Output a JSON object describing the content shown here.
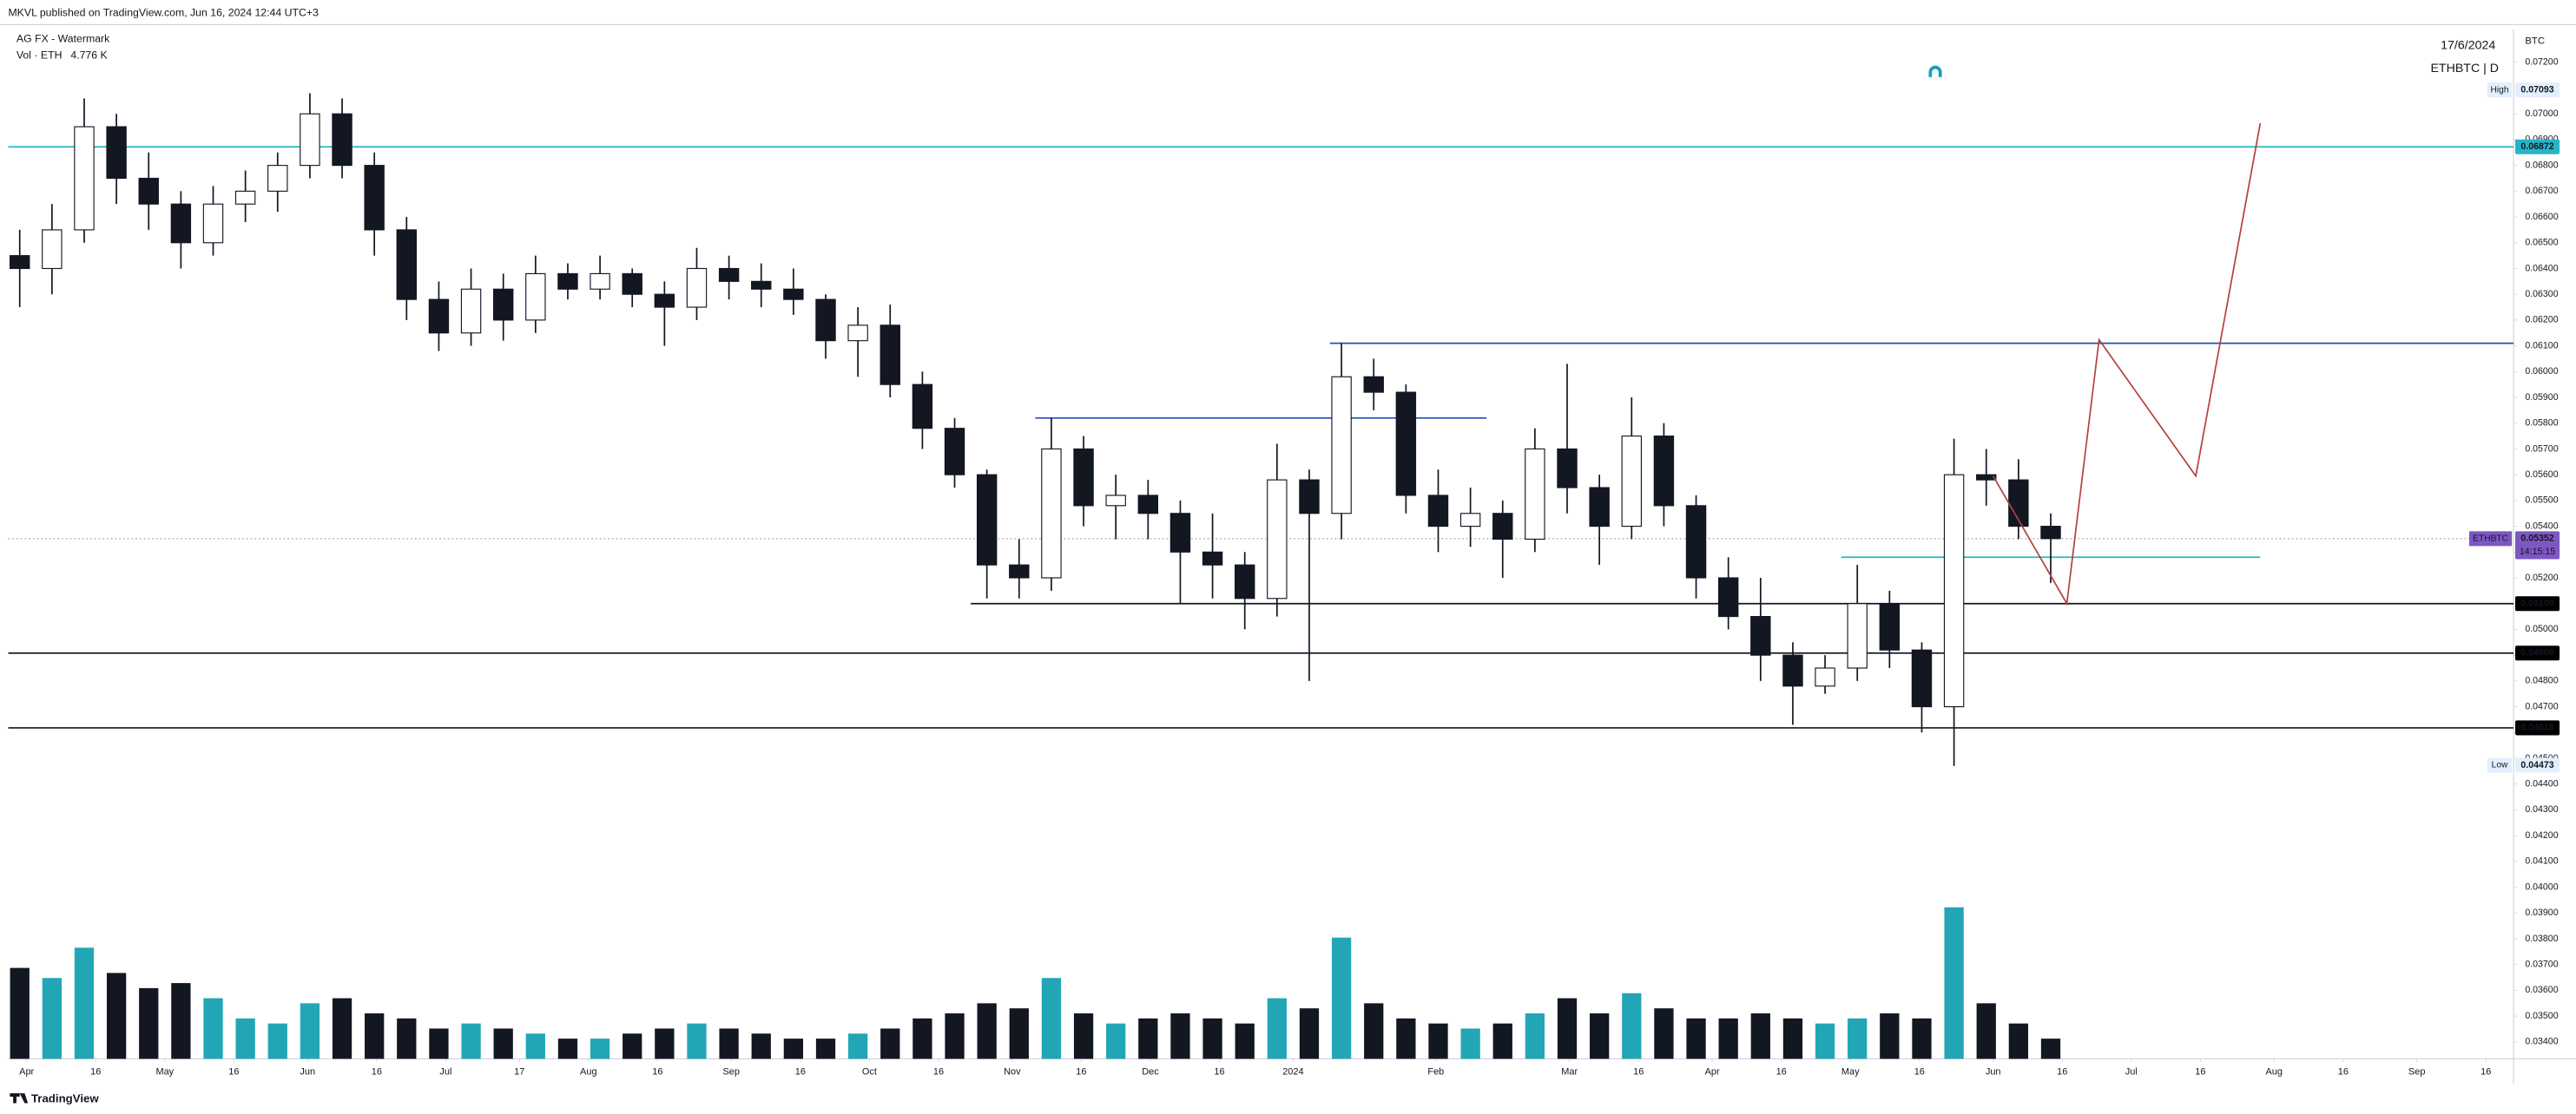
{
  "chart_data": {
    "type": "candlestick",
    "publisher_line": "MKVL published on TradingView.com, Jun 16, 2024 12:44 UTC+3",
    "indicator": "AG FX - Watermark",
    "volume_label": "Vol · ETH",
    "volume_value_label": "4.776 K",
    "date_label": "17/6/2024",
    "symbol_label": "ETHBTC | D",
    "axis_unit": "BTC",
    "brand": "TradingView",
    "up_color": "#ffffff",
    "down_color": "#131722",
    "volume_up_color": "#22a6b5",
    "volume_down_color": "#131722",
    "grid": false,
    "x": [
      "2023-03-27",
      "2023-04-03",
      "2023-04-10",
      "2023-04-17",
      "2023-04-24",
      "2023-05-01",
      "2023-05-08",
      "2023-05-15",
      "2023-05-22",
      "2023-05-29",
      "2023-06-05",
      "2023-06-12",
      "2023-06-19",
      "2023-06-26",
      "2023-07-03",
      "2023-07-10",
      "2023-07-17",
      "2023-07-24",
      "2023-07-31",
      "2023-08-07",
      "2023-08-14",
      "2023-08-21",
      "2023-08-28",
      "2023-09-04",
      "2023-09-11",
      "2023-09-18",
      "2023-09-25",
      "2023-10-02",
      "2023-10-09",
      "2023-10-16",
      "2023-10-23",
      "2023-10-30",
      "2023-11-06",
      "2023-11-13",
      "2023-11-20",
      "2023-11-27",
      "2023-12-04",
      "2023-12-11",
      "2023-12-18",
      "2023-12-25",
      "2024-01-01",
      "2024-01-08",
      "2024-01-15",
      "2024-01-22",
      "2024-01-29",
      "2024-02-05",
      "2024-02-12",
      "2024-02-19",
      "2024-02-26",
      "2024-03-04",
      "2024-03-11",
      "2024-03-18",
      "2024-03-25",
      "2024-04-01",
      "2024-04-08",
      "2024-04-15",
      "2024-04-22",
      "2024-04-29",
      "2024-05-06",
      "2024-05-13",
      "2024-05-20",
      "2024-05-27",
      "2024-06-03",
      "2024-06-10"
    ],
    "open": [
      0.0645,
      0.064,
      0.0655,
      0.0695,
      0.0675,
      0.0665,
      0.065,
      0.0665,
      0.067,
      0.068,
      0.07,
      0.068,
      0.0655,
      0.0628,
      0.0615,
      0.0632,
      0.062,
      0.0638,
      0.0632,
      0.0638,
      0.063,
      0.0625,
      0.064,
      0.0635,
      0.0632,
      0.0628,
      0.0612,
      0.0618,
      0.0595,
      0.0578,
      0.056,
      0.0525,
      0.052,
      0.057,
      0.0548,
      0.0552,
      0.0545,
      0.053,
      0.0525,
      0.0512,
      0.0558,
      0.0545,
      0.0598,
      0.0592,
      0.0552,
      0.054,
      0.0545,
      0.0535,
      0.057,
      0.0555,
      0.054,
      0.0575,
      0.0548,
      0.052,
      0.0505,
      0.049,
      0.0478,
      0.0485,
      0.051,
      0.0492,
      0.047,
      0.056,
      0.0558,
      0.054
    ],
    "high": [
      0.0655,
      0.0665,
      0.0706,
      0.07,
      0.0685,
      0.067,
      0.0672,
      0.0678,
      0.0685,
      0.0708,
      0.0706,
      0.0685,
      0.066,
      0.0635,
      0.064,
      0.0638,
      0.0645,
      0.0642,
      0.0645,
      0.064,
      0.0635,
      0.0648,
      0.0645,
      0.0642,
      0.064,
      0.063,
      0.0625,
      0.0626,
      0.06,
      0.0582,
      0.0562,
      0.0535,
      0.0582,
      0.0575,
      0.056,
      0.0558,
      0.055,
      0.0545,
      0.053,
      0.0572,
      0.0562,
      0.0611,
      0.0605,
      0.0595,
      0.0562,
      0.0555,
      0.055,
      0.0578,
      0.0603,
      0.056,
      0.059,
      0.058,
      0.0552,
      0.0528,
      0.052,
      0.0495,
      0.049,
      0.0525,
      0.0515,
      0.0495,
      0.0574,
      0.057,
      0.0566,
      0.0545
    ],
    "low": [
      0.0625,
      0.063,
      0.065,
      0.0665,
      0.0655,
      0.064,
      0.0645,
      0.0658,
      0.0662,
      0.0675,
      0.0675,
      0.0645,
      0.062,
      0.0608,
      0.061,
      0.0612,
      0.0615,
      0.0628,
      0.0628,
      0.0625,
      0.061,
      0.062,
      0.0628,
      0.0625,
      0.0622,
      0.0605,
      0.0598,
      0.059,
      0.057,
      0.0555,
      0.0512,
      0.0512,
      0.0515,
      0.054,
      0.0535,
      0.0535,
      0.051,
      0.0512,
      0.05,
      0.0505,
      0.048,
      0.0535,
      0.0585,
      0.0545,
      0.053,
      0.0532,
      0.052,
      0.053,
      0.0545,
      0.0525,
      0.0535,
      0.054,
      0.0512,
      0.05,
      0.048,
      0.0463,
      0.0475,
      0.048,
      0.0485,
      0.046,
      0.0447,
      0.0548,
      0.0535,
      0.0518
    ],
    "close": [
      0.064,
      0.0655,
      0.0695,
      0.0675,
      0.0665,
      0.065,
      0.0665,
      0.067,
      0.068,
      0.07,
      0.068,
      0.0655,
      0.0628,
      0.0615,
      0.0632,
      0.062,
      0.0638,
      0.0632,
      0.0638,
      0.063,
      0.0625,
      0.064,
      0.0635,
      0.0632,
      0.0628,
      0.0612,
      0.0618,
      0.0595,
      0.0578,
      0.056,
      0.0525,
      0.052,
      0.057,
      0.0548,
      0.0552,
      0.0545,
      0.053,
      0.0525,
      0.0512,
      0.0558,
      0.0545,
      0.0598,
      0.0592,
      0.0552,
      0.054,
      0.0545,
      0.0535,
      0.057,
      0.0555,
      0.054,
      0.0575,
      0.0548,
      0.052,
      0.0505,
      0.049,
      0.0478,
      0.0485,
      0.051,
      0.0492,
      0.047,
      0.056,
      0.0558,
      0.054,
      0.05352
    ],
    "volume": [
      90,
      80,
      110,
      85,
      70,
      75,
      60,
      40,
      35,
      55,
      60,
      45,
      40,
      30,
      35,
      30,
      25,
      20,
      20,
      25,
      30,
      35,
      30,
      25,
      20,
      20,
      25,
      30,
      40,
      45,
      55,
      50,
      80,
      45,
      35,
      40,
      45,
      40,
      35,
      60,
      50,
      120,
      55,
      40,
      35,
      30,
      35,
      45,
      60,
      45,
      65,
      50,
      40,
      40,
      45,
      40,
      35,
      40,
      45,
      40,
      150,
      55,
      35,
      20
    ],
    "volume_lim": [
      0,
      260
    ],
    "xlim": [
      "2023-03-28",
      "2024-09-22"
    ],
    "xticks": [
      {
        "value": "2023-04-01",
        "label": "Apr"
      },
      {
        "value": "2023-04-16",
        "label": "16"
      },
      {
        "value": "2023-05-01",
        "label": "May"
      },
      {
        "value": "2023-05-16",
        "label": "16"
      },
      {
        "value": "2023-06-01",
        "label": "Jun"
      },
      {
        "value": "2023-06-16",
        "label": "16"
      },
      {
        "value": "2023-07-01",
        "label": "Jul"
      },
      {
        "value": "2023-07-17",
        "label": "17"
      },
      {
        "value": "2023-08-01",
        "label": "Aug"
      },
      {
        "value": "2023-08-16",
        "label": "16"
      },
      {
        "value": "2023-09-01",
        "label": "Sep"
      },
      {
        "value": "2023-09-16",
        "label": "16"
      },
      {
        "value": "2023-10-01",
        "label": "Oct"
      },
      {
        "value": "2023-10-16",
        "label": "16"
      },
      {
        "value": "2023-11-01",
        "label": "Nov"
      },
      {
        "value": "2023-11-16",
        "label": "16"
      },
      {
        "value": "2023-12-01",
        "label": "Dec"
      },
      {
        "value": "2023-12-16",
        "label": "16"
      },
      {
        "value": "2024-01-01",
        "label": "2024"
      },
      {
        "value": "2024-02-01",
        "label": "Feb"
      },
      {
        "value": "2024-03-01",
        "label": "Mar"
      },
      {
        "value": "2024-03-16",
        "label": "16"
      },
      {
        "value": "2024-04-01",
        "label": "Apr"
      },
      {
        "value": "2024-04-16",
        "label": "16"
      },
      {
        "value": "2024-05-01",
        "label": "May"
      },
      {
        "value": "2024-05-16",
        "label": "16"
      },
      {
        "value": "2024-06-01",
        "label": "Jun"
      },
      {
        "value": "2024-06-16",
        "label": "16"
      },
      {
        "value": "2024-07-01",
        "label": "Jul"
      },
      {
        "value": "2024-07-16",
        "label": "16"
      },
      {
        "value": "2024-08-01",
        "label": "Aug"
      },
      {
        "value": "2024-08-16",
        "label": "16"
      },
      {
        "value": "2024-09-01",
        "label": "Sep"
      },
      {
        "value": "2024-09-16",
        "label": "16"
      }
    ],
    "ylim": [
      0.03334,
      0.07327
    ],
    "yticks": [
      {
        "value": 0.034,
        "label": "0.03400"
      },
      {
        "value": 0.035,
        "label": "0.03500"
      },
      {
        "value": 0.036,
        "label": "0.03600"
      },
      {
        "value": 0.037,
        "label": "0.03700"
      },
      {
        "value": 0.038,
        "label": "0.03800"
      },
      {
        "value": 0.039,
        "label": "0.03900"
      },
      {
        "value": 0.04,
        "label": "0.04000"
      },
      {
        "value": 0.041,
        "label": "0.04100"
      },
      {
        "value": 0.042,
        "label": "0.04200"
      },
      {
        "value": 0.043,
        "label": "0.04300"
      },
      {
        "value": 0.044,
        "label": "0.04400"
      },
      {
        "value": 0.045,
        "label": "0.04500"
      },
      {
        "value": 0.046,
        "label": "0.04600"
      },
      {
        "value": 0.047,
        "label": "0.04700"
      },
      {
        "value": 0.048,
        "label": "0.04800"
      },
      {
        "value": 0.049,
        "label": "0.04900"
      },
      {
        "value": 0.05,
        "label": "0.05000"
      },
      {
        "value": 0.051,
        "label": "0.05100"
      },
      {
        "value": 0.052,
        "label": "0.05200"
      },
      {
        "value": 0.053,
        "label": "0.05300"
      },
      {
        "value": 0.054,
        "label": "0.05400"
      },
      {
        "value": 0.055,
        "label": "0.05500"
      },
      {
        "value": 0.056,
        "label": "0.05600"
      },
      {
        "value": 0.057,
        "label": "0.05700"
      },
      {
        "value": 0.058,
        "label": "0.05800"
      },
      {
        "value": 0.059,
        "label": "0.05900"
      },
      {
        "value": 0.06,
        "label": "0.06000"
      },
      {
        "value": 0.061,
        "label": "0.06100"
      },
      {
        "value": 0.062,
        "label": "0.06200"
      },
      {
        "value": 0.063,
        "label": "0.06300"
      },
      {
        "value": 0.064,
        "label": "0.06400"
      },
      {
        "value": 0.065,
        "label": "0.06500"
      },
      {
        "value": 0.066,
        "label": "0.06600"
      },
      {
        "value": 0.067,
        "label": "0.06700"
      },
      {
        "value": 0.068,
        "label": "0.06800"
      },
      {
        "value": 0.069,
        "label": "0.06900"
      },
      {
        "value": 0.07,
        "label": "0.07000"
      },
      {
        "value": 0.071,
        "label": "0.07100"
      },
      {
        "value": 0.072,
        "label": "0.07200"
      }
    ],
    "lines": [
      {
        "value": 0.06872,
        "color": "#26b5c7"
      },
      {
        "value": 0.0611,
        "color": "#1e50b4",
        "from": "2024-01-09"
      },
      {
        "value": 0.0582,
        "color": "#1e50b4",
        "from": "2023-11-06",
        "to": "2024-02-12"
      },
      {
        "value": 0.051,
        "color": "#131722",
        "from": "2023-10-23"
      },
      {
        "value": 0.04908,
        "color": "#131722"
      },
      {
        "value": 0.04618,
        "color": "#131722"
      },
      {
        "value": 0.0528,
        "color": "#26b5c7",
        "from": "2024-04-29",
        "to": "2024-07-29"
      }
    ],
    "projection": {
      "color": "#b2413f",
      "x": [
        "2024-06-01",
        "2024-06-17",
        "2024-06-24",
        "2024-07-15",
        "2024-07-29"
      ],
      "values": [
        0.05595,
        0.051,
        0.06124,
        0.05595,
        0.06964
      ]
    },
    "price_labels": [
      {
        "value": 0.07093,
        "tag": "High",
        "bg": "#e3effd",
        "fg": "#131722"
      },
      {
        "value": 0.06872,
        "bg": "#26b5c7",
        "fg": "#ffffff"
      },
      {
        "value": 0.051,
        "label": "0.05100",
        "bg": "#000000",
        "fg": "#ffffff"
      },
      {
        "value": 0.04908,
        "bg": "#000000",
        "fg": "#ffffff"
      },
      {
        "value": 0.04618,
        "bg": "#000000",
        "fg": "#ffffff"
      },
      {
        "value": 0.04473,
        "tag": "Low",
        "bg": "#e3effd",
        "fg": "#131722"
      }
    ],
    "current_price": {
      "value": 0.05352,
      "tag": "ETHBTC",
      "countdown": "14:15:15",
      "color": "#7e57c2"
    }
  }
}
